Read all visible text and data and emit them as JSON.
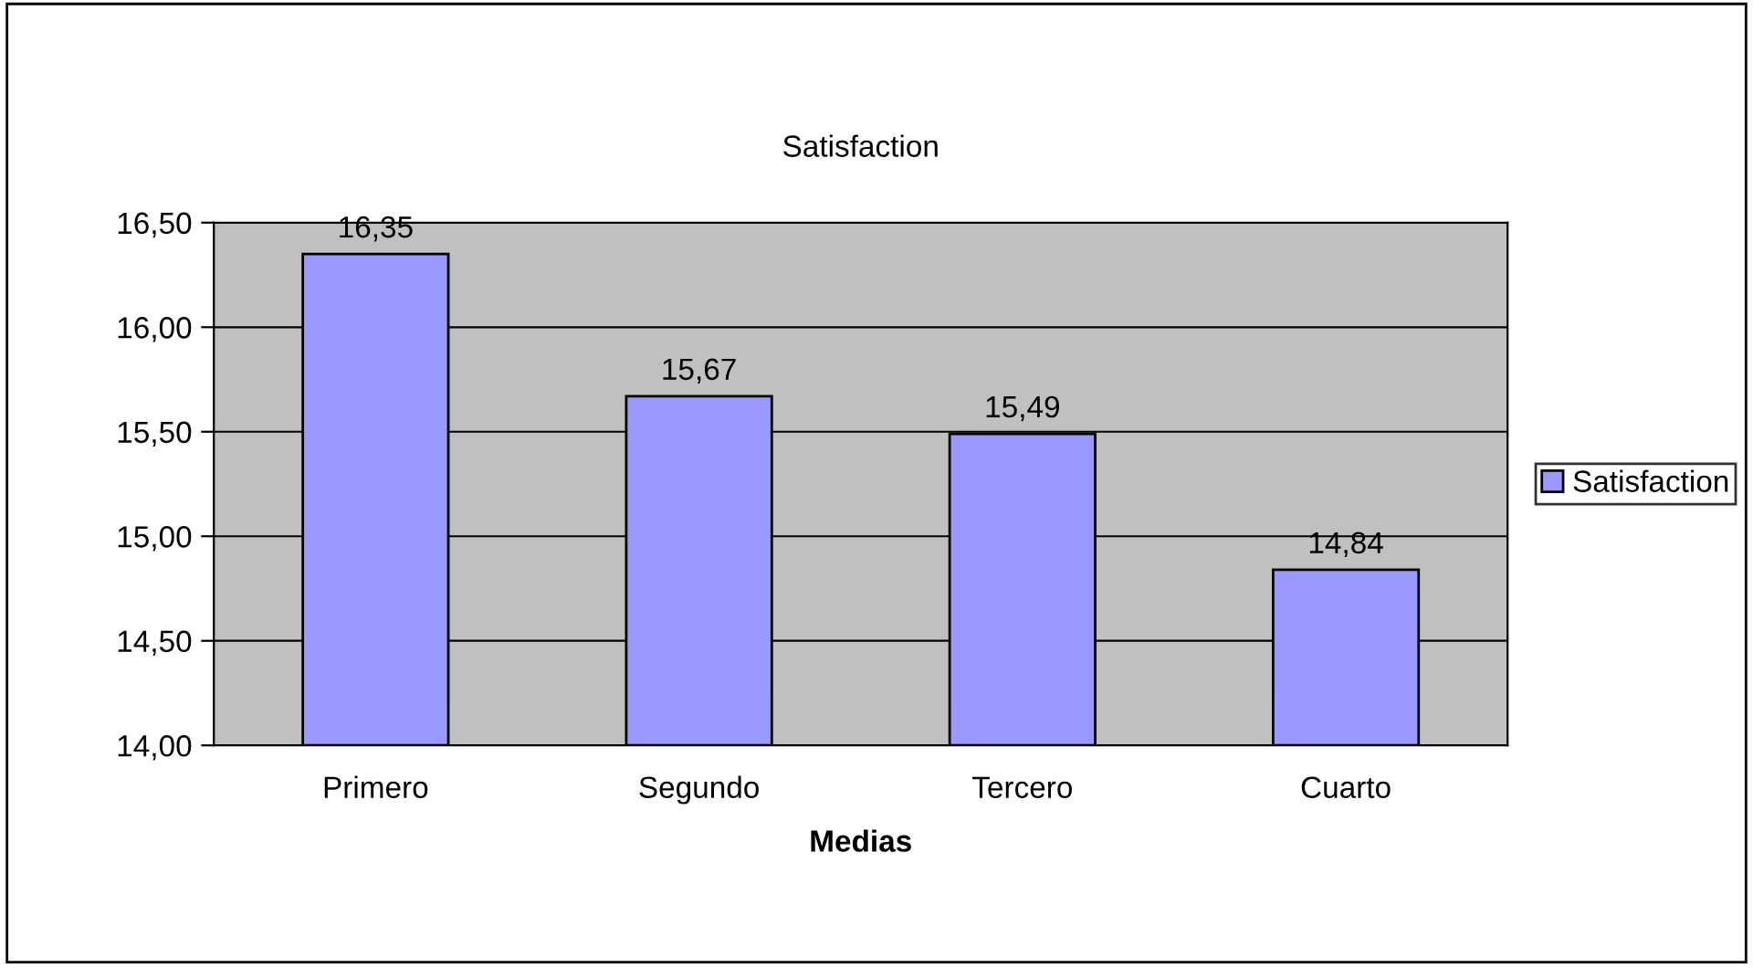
{
  "chart_data": {
    "type": "bar",
    "title": "Satisfaction",
    "xlabel": "Medias",
    "categories": [
      "Primero",
      "Segundo",
      "Tercero",
      "Cuarto"
    ],
    "series": [
      {
        "name": "Satisfaction",
        "color": "#9999ff",
        "values": [
          16.35,
          15.67,
          15.49,
          14.84
        ],
        "value_labels": [
          "16,35",
          "15,67",
          "15,49",
          "14,84"
        ]
      }
    ],
    "ylim": [
      14,
      16.5
    ],
    "yticks": [
      {
        "value": 14,
        "label": "14,00"
      },
      {
        "value": 14.5,
        "label": "14,50"
      },
      {
        "value": 15,
        "label": "15,00"
      },
      {
        "value": 15.5,
        "label": "15,50"
      },
      {
        "value": 16,
        "label": "16,00"
      },
      {
        "value": 16.5,
        "label": "16,50"
      }
    ],
    "grid": "y",
    "legend": "right"
  }
}
